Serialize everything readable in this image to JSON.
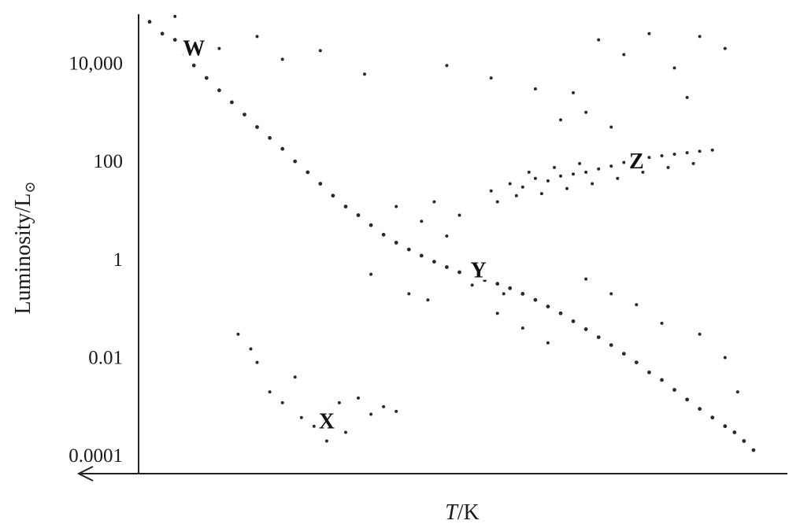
{
  "chart_data": {
    "type": "scatter",
    "title": "",
    "xlabel_italic": "T",
    "xlabel_rest": "/K",
    "ylabel": "Luminosity/L",
    "ylabel_symbol": "⊙",
    "y_scale": "log",
    "ylim": [
      5e-05,
      100000
    ],
    "y_ticks": [
      {
        "value": 10000,
        "label": "10,000"
      },
      {
        "value": 100,
        "label": "100"
      },
      {
        "value": 1,
        "label": "1"
      },
      {
        "value": 0.01,
        "label": "0.01"
      },
      {
        "value": 0.0001,
        "label": "0.0001"
      }
    ],
    "x_direction": "temperature increases to the left (arrow points left)",
    "x_ticks": [],
    "x_range_relative": [
      0,
      100
    ],
    "grid": false,
    "legend": "none",
    "regions": [
      {
        "label": "W",
        "x": 8,
        "y": 20000
      },
      {
        "label": "X",
        "x": 29,
        "y": 0.0005
      },
      {
        "label": "Y",
        "x": 53,
        "y": 0.6
      },
      {
        "label": "Z",
        "x": 78,
        "y": 100
      }
    ],
    "series": [
      {
        "kind": "main_sequence",
        "points": [
          [
            1,
            70000
          ],
          [
            3,
            40000
          ],
          [
            5,
            30000
          ],
          [
            6.5,
            15000
          ],
          [
            8,
            9000
          ],
          [
            10,
            5000
          ],
          [
            12,
            2800
          ],
          [
            14,
            1600
          ],
          [
            16,
            900
          ],
          [
            18,
            500
          ],
          [
            20,
            300
          ],
          [
            22,
            180
          ],
          [
            24,
            100
          ],
          [
            26,
            60
          ],
          [
            28,
            35
          ],
          [
            30,
            20
          ],
          [
            32,
            12
          ],
          [
            34,
            8
          ],
          [
            36,
            5
          ],
          [
            38,
            3.2
          ],
          [
            40,
            2.2
          ],
          [
            42,
            1.6
          ],
          [
            44,
            1.2
          ],
          [
            46,
            0.9
          ],
          [
            48,
            0.7
          ],
          [
            50,
            0.55
          ],
          [
            52,
            0.45
          ],
          [
            54,
            0.38
          ],
          [
            56,
            0.32
          ],
          [
            58,
            0.26
          ],
          [
            60,
            0.2
          ],
          [
            62,
            0.15
          ],
          [
            64,
            0.11
          ],
          [
            66,
            0.08
          ],
          [
            68,
            0.055
          ],
          [
            70,
            0.038
          ],
          [
            72,
            0.026
          ],
          [
            74,
            0.018
          ],
          [
            76,
            0.012
          ],
          [
            78,
            0.008
          ],
          [
            80,
            0.005
          ],
          [
            82,
            0.0035
          ],
          [
            84,
            0.0022
          ],
          [
            86,
            0.0014
          ],
          [
            88,
            0.0009
          ],
          [
            90,
            0.0006
          ],
          [
            92,
            0.0004
          ],
          [
            93.5,
            0.0003
          ],
          [
            95,
            0.0002
          ],
          [
            96.5,
            0.00013
          ]
        ]
      },
      {
        "kind": "giants",
        "points": [
          [
            55,
            25
          ],
          [
            58,
            35
          ],
          [
            60,
            30
          ],
          [
            62,
            45
          ],
          [
            64,
            40
          ],
          [
            66,
            50
          ],
          [
            68,
            55
          ],
          [
            70,
            60
          ],
          [
            72,
            70
          ],
          [
            74,
            80
          ],
          [
            76,
            95
          ],
          [
            78,
            110
          ],
          [
            80,
            120
          ],
          [
            82,
            130
          ],
          [
            84,
            140
          ],
          [
            86,
            150
          ],
          [
            88,
            160
          ],
          [
            90,
            170
          ],
          [
            56,
            15
          ],
          [
            59,
            20
          ],
          [
            63,
            22
          ],
          [
            67,
            28
          ],
          [
            71,
            35
          ],
          [
            75,
            45
          ],
          [
            79,
            60
          ],
          [
            83,
            75
          ],
          [
            87,
            90
          ],
          [
            61,
            60
          ],
          [
            65,
            75
          ],
          [
            69,
            90
          ]
        ]
      },
      {
        "kind": "white_dwarfs",
        "points": [
          [
            15,
            0.03
          ],
          [
            18,
            0.008
          ],
          [
            20,
            0.002
          ],
          [
            22,
            0.0012
          ],
          [
            25,
            0.0006
          ],
          [
            27,
            0.0004
          ],
          [
            30,
            0.0009
          ],
          [
            32,
            0.0003
          ],
          [
            34,
            0.0015
          ],
          [
            36,
            0.0007
          ],
          [
            17,
            0.015
          ],
          [
            24,
            0.004
          ],
          [
            29,
            0.0002
          ],
          [
            31,
            0.0012
          ],
          [
            38,
            0.001
          ],
          [
            40,
            0.0008
          ]
        ]
      },
      {
        "kind": "supergiants",
        "points": [
          [
            5,
            90000
          ],
          [
            12,
            20000
          ],
          [
            18,
            35000
          ],
          [
            22,
            12000
          ],
          [
            28,
            18000
          ],
          [
            35,
            6000
          ],
          [
            48,
            9000
          ],
          [
            55,
            5000
          ],
          [
            62,
            3000
          ],
          [
            68,
            2500
          ],
          [
            72,
            30000
          ],
          [
            76,
            15000
          ],
          [
            80,
            40000
          ],
          [
            84,
            8000
          ],
          [
            88,
            35000
          ],
          [
            92,
            20000
          ],
          [
            66,
            700
          ],
          [
            70,
            1000
          ],
          [
            74,
            500
          ],
          [
            86,
            2000
          ]
        ]
      },
      {
        "kind": "scattered",
        "points": [
          [
            40,
            12
          ],
          [
            44,
            6
          ],
          [
            48,
            3
          ],
          [
            50,
            8
          ],
          [
            46,
            15
          ],
          [
            36,
            0.5
          ],
          [
            42,
            0.2
          ],
          [
            56,
            0.08
          ],
          [
            60,
            0.04
          ],
          [
            64,
            0.02
          ],
          [
            45,
            0.15
          ],
          [
            52,
            0.3
          ],
          [
            57,
            0.2
          ],
          [
            70,
            0.4
          ],
          [
            74,
            0.2
          ],
          [
            78,
            0.12
          ],
          [
            82,
            0.05
          ],
          [
            88,
            0.03
          ],
          [
            92,
            0.01
          ],
          [
            94,
            0.002
          ]
        ]
      }
    ]
  }
}
